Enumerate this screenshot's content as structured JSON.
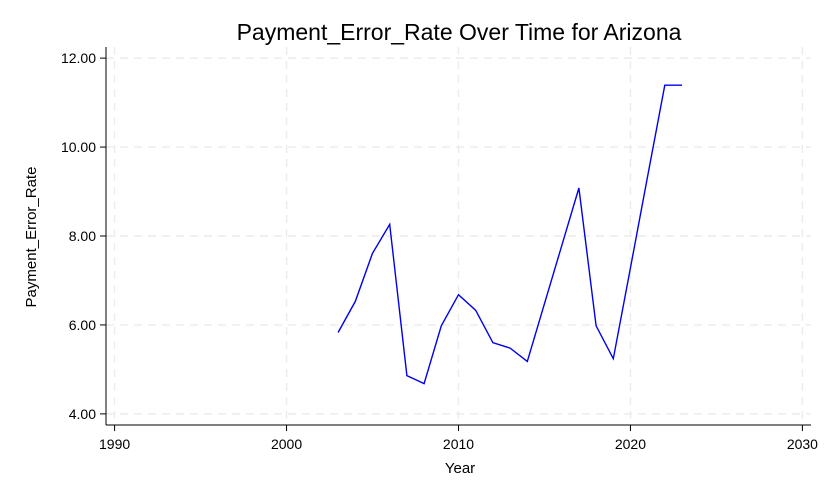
{
  "chart_data": {
    "type": "line",
    "title": "Payment_Error_Rate Over Time for Arizona",
    "xlabel": "Year",
    "ylabel": "Payment_Error_Rate",
    "xlim": [
      1989.5,
      2030.5
    ],
    "ylim": [
      3.75,
      12.25
    ],
    "xticks": [
      1990,
      2000,
      2010,
      2020,
      2030
    ],
    "xtick_labels": [
      "1990",
      "2000",
      "2010",
      "2020",
      "2030"
    ],
    "yticks": [
      4,
      6,
      8,
      10,
      12
    ],
    "ytick_labels": [
      "4.00",
      "6.00",
      "8.00",
      "10.00",
      "12.00"
    ],
    "grid": true,
    "series": [
      {
        "color": "#0000ee",
        "x": [
          2003,
          2004,
          2005,
          2006,
          2007,
          2008,
          2009,
          2010,
          2011,
          2012,
          2013,
          2014,
          2015,
          2016,
          2017,
          2018,
          2019,
          2020,
          2021,
          2022,
          2023
        ],
        "y": [
          5.83,
          6.53,
          7.61,
          8.26,
          4.86,
          4.68,
          5.98,
          6.68,
          6.33,
          5.6,
          5.48,
          5.18,
          6.48,
          7.78,
          9.08,
          5.98,
          5.24,
          7.29,
          9.34,
          11.39,
          11.39
        ]
      }
    ]
  }
}
